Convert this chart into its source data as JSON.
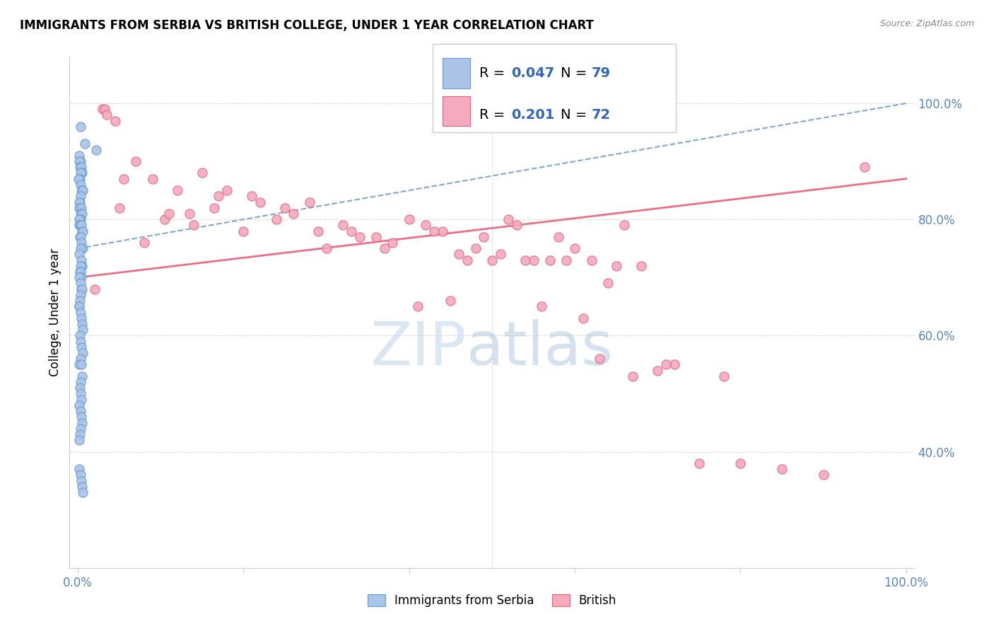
{
  "title": "IMMIGRANTS FROM SERBIA VS BRITISH COLLEGE, UNDER 1 YEAR CORRELATION CHART",
  "source": "Source: ZipAtlas.com",
  "ylabel": "College, Under 1 year",
  "legend_label1": "Immigrants from Serbia",
  "legend_label2": "British",
  "R1": 0.047,
  "N1": 79,
  "R2": 0.201,
  "N2": 72,
  "color_serbia": "#aac4e8",
  "color_british": "#f5aabf",
  "color_serbia_line": "#6699cc",
  "color_british_line": "#e8607a",
  "serbia_x": [
    0.3,
    0.8,
    2.2,
    0.2,
    0.35,
    0.15,
    0.25,
    0.4,
    0.5,
    0.3,
    0.2,
    0.25,
    0.1,
    0.35,
    0.45,
    0.55,
    0.3,
    0.25,
    0.2,
    0.15,
    0.4,
    0.3,
    0.5,
    0.35,
    0.25,
    0.15,
    0.2,
    0.3,
    0.4,
    0.5,
    0.6,
    0.25,
    0.35,
    0.45,
    0.55,
    0.3,
    0.2,
    0.4,
    0.5,
    0.3,
    0.25,
    0.35,
    0.45,
    0.2,
    0.3,
    0.4,
    0.5,
    0.35,
    0.25,
    0.15,
    0.2,
    0.3,
    0.4,
    0.5,
    0.6,
    0.25,
    0.35,
    0.45,
    0.55,
    0.3,
    0.2,
    0.4,
    0.5,
    0.3,
    0.25,
    0.35,
    0.45,
    0.2,
    0.3,
    0.4,
    0.5,
    0.35,
    0.25,
    0.15,
    0.2,
    0.3,
    0.4,
    0.5,
    0.6
  ],
  "serbia_y": [
    96,
    93,
    92,
    91,
    90,
    90,
    89,
    89,
    88,
    88,
    87,
    87,
    87,
    86,
    85,
    85,
    84,
    83,
    83,
    82,
    82,
    81,
    81,
    80,
    80,
    80,
    79,
    79,
    79,
    78,
    78,
    77,
    77,
    76,
    75,
    75,
    74,
    73,
    72,
    72,
    71,
    71,
    70,
    70,
    69,
    68,
    68,
    67,
    66,
    65,
    65,
    64,
    63,
    62,
    61,
    60,
    59,
    58,
    57,
    56,
    55,
    55,
    53,
    52,
    51,
    50,
    49,
    48,
    47,
    46,
    45,
    44,
    43,
    42,
    37,
    36,
    35,
    34,
    33
  ],
  "british_x": [
    2.0,
    3.0,
    3.2,
    3.5,
    4.5,
    5.5,
    7.0,
    9.0,
    10.5,
    12.0,
    13.5,
    15.0,
    16.5,
    18.0,
    20.0,
    22.0,
    24.0,
    26.0,
    28.0,
    30.0,
    32.0,
    34.0,
    36.0,
    38.0,
    40.0,
    42.0,
    44.0,
    46.0,
    48.0,
    50.0,
    52.0,
    54.0,
    56.0,
    58.0,
    60.0,
    62.0,
    64.0,
    66.0,
    70.0,
    75.0,
    80.0,
    95.0,
    5.0,
    8.0,
    11.0,
    14.0,
    17.0,
    21.0,
    25.0,
    29.0,
    33.0,
    37.0,
    41.0,
    45.0,
    49.0,
    53.0,
    57.0,
    61.0,
    65.0,
    68.0,
    72.0,
    78.0,
    85.0,
    90.0,
    43.0,
    47.0,
    51.0,
    55.0,
    59.0,
    63.0,
    67.0,
    71.0
  ],
  "british_y": [
    68,
    99,
    99,
    98,
    97,
    87,
    90,
    87,
    80,
    85,
    81,
    88,
    82,
    85,
    78,
    83,
    80,
    81,
    83,
    75,
    79,
    77,
    77,
    76,
    80,
    79,
    78,
    74,
    75,
    73,
    80,
    73,
    65,
    77,
    75,
    73,
    69,
    79,
    54,
    38,
    38,
    89,
    82,
    76,
    81,
    79,
    84,
    84,
    82,
    78,
    78,
    75,
    65,
    66,
    77,
    79,
    73,
    63,
    72,
    72,
    55,
    53,
    37,
    36,
    78,
    73,
    74,
    73,
    73,
    56,
    53,
    55
  ]
}
